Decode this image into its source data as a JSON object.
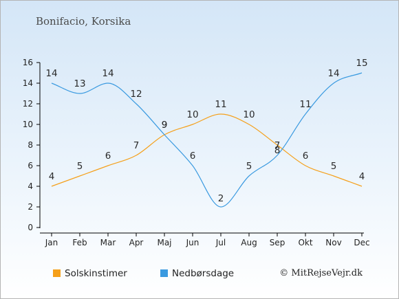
{
  "page": {
    "location": "Bonifacio, Korsika",
    "credit": "© MitRejseVejr.dk"
  },
  "colors": {
    "sun": "#f5a01a",
    "rain": "#3a9ae0",
    "axis": "#000000"
  },
  "chart_data": {
    "type": "line",
    "title": "Bonifacio, Korsika",
    "categories": [
      "Jan",
      "Feb",
      "Mar",
      "Apr",
      "Maj",
      "Jun",
      "Jul",
      "Aug",
      "Sep",
      "Okt",
      "Nov",
      "Dec"
    ],
    "ylim": [
      0,
      16
    ],
    "yticks": [
      0,
      2,
      4,
      6,
      8,
      10,
      12,
      14,
      16
    ],
    "grid": false,
    "legend_position": "bottom-left",
    "series": [
      {
        "name": "Solskinstimer",
        "color": "#f5a01a",
        "values": [
          4,
          5,
          6,
          7,
          9,
          10,
          11,
          10,
          8,
          6,
          5,
          4
        ]
      },
      {
        "name": "Nedbørsdage",
        "color": "#3a9ae0",
        "values": [
          14,
          13,
          14,
          12,
          9,
          6,
          2,
          5,
          7,
          11,
          14,
          15
        ]
      }
    ]
  }
}
